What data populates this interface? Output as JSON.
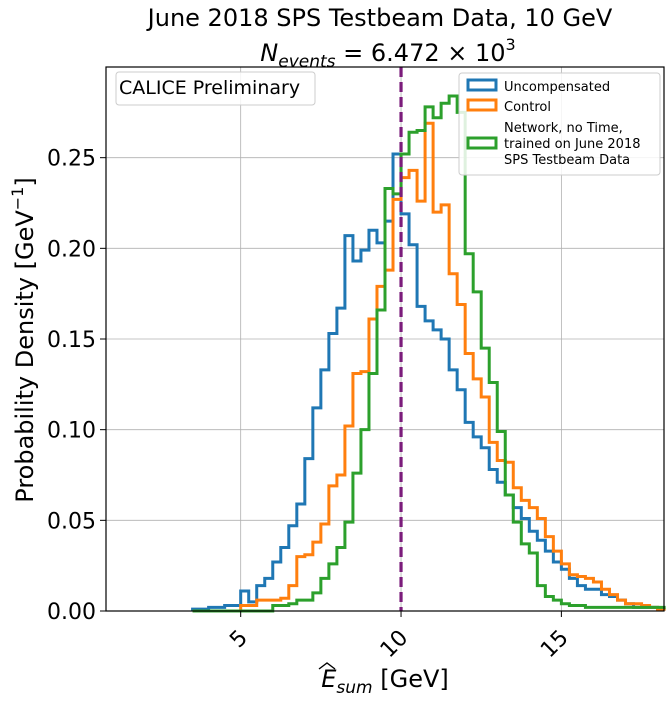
{
  "chart_data": {
    "type": "histogram",
    "title_line1": "June 2018 SPS Testbeam Data, 10 GeV",
    "title_line2_prefix": "N",
    "title_line2_sub": "events",
    "title_line2_value": " = 6.472 × 10",
    "title_line2_exp": "3",
    "xlabel_main": "E",
    "xlabel_sub": "sum",
    "xlabel_unit": " [GeV]",
    "ylabel": "Probability Density [GeV",
    "ylabel_exp": "−1",
    "ylabel_close": "]",
    "preliminary_label": "CALICE Preliminary",
    "xlim": [
      0.8,
      18.2
    ],
    "ylim": [
      0,
      0.3
    ],
    "x_ticks": [
      "5",
      "10",
      "15"
    ],
    "x_tick_values": [
      5,
      10,
      15
    ],
    "y_ticks": [
      "0.00",
      "0.05",
      "0.10",
      "0.15",
      "0.20",
      "0.25"
    ],
    "y_tick_values": [
      0.0,
      0.05,
      0.1,
      0.15,
      0.2,
      0.25
    ],
    "reference_line_x": 10,
    "reference_line_color": "#7b1c7b",
    "grid": true,
    "legend_position": "top-right",
    "bin_edges": [
      3.5,
      3.75,
      4.0,
      4.25,
      4.5,
      4.75,
      5.0,
      5.25,
      5.5,
      5.75,
      6.0,
      6.25,
      6.5,
      6.75,
      7.0,
      7.25,
      7.5,
      7.75,
      8.0,
      8.25,
      8.5,
      8.75,
      9.0,
      9.25,
      9.5,
      9.75,
      10.0,
      10.25,
      10.5,
      10.75,
      11.0,
      11.25,
      11.5,
      11.75,
      12.0,
      12.25,
      12.5,
      12.75,
      13.0,
      13.25,
      13.5,
      13.75,
      14.0,
      14.25,
      14.5,
      14.75,
      15.0,
      15.25,
      15.5,
      15.75,
      16.0,
      16.25,
      16.5,
      16.75,
      17.0,
      17.25,
      17.5,
      17.75,
      18.0,
      18.25
    ],
    "series": [
      {
        "name": "Uncompensated",
        "color": "#1f77b4",
        "values": [
          0.001,
          0.001,
          0.002,
          0.002,
          0.003,
          0.003,
          0.011,
          0.005,
          0.014,
          0.018,
          0.027,
          0.035,
          0.047,
          0.059,
          0.084,
          0.112,
          0.133,
          0.153,
          0.167,
          0.207,
          0.193,
          0.199,
          0.21,
          0.203,
          0.215,
          0.252,
          0.219,
          0.202,
          0.168,
          0.16,
          0.155,
          0.15,
          0.133,
          0.122,
          0.104,
          0.096,
          0.09,
          0.078,
          0.071,
          0.064,
          0.057,
          0.051,
          0.044,
          0.039,
          0.033,
          0.027,
          0.023,
          0.018,
          0.014,
          0.012,
          0.012,
          0.009,
          0.008,
          0.006,
          0.004,
          0.002,
          0.002,
          0.002,
          0.001,
          0.001
        ]
      },
      {
        "name": "Control",
        "color": "#ff7f0e",
        "values": [
          0.0,
          0.0,
          0.0,
          0.0,
          0.0,
          0.0,
          0.003,
          0.003,
          0.006,
          0.006,
          0.006,
          0.007,
          0.014,
          0.03,
          0.031,
          0.038,
          0.048,
          0.069,
          0.075,
          0.102,
          0.131,
          0.132,
          0.161,
          0.179,
          0.188,
          0.227,
          0.239,
          0.243,
          0.226,
          0.269,
          0.22,
          0.224,
          0.186,
          0.169,
          0.142,
          0.128,
          0.118,
          0.093,
          0.083,
          0.082,
          0.068,
          0.061,
          0.057,
          0.051,
          0.041,
          0.033,
          0.026,
          0.02,
          0.019,
          0.018,
          0.016,
          0.012,
          0.009,
          0.006,
          0.004,
          0.004,
          0.003,
          0.002,
          0.001,
          0.001
        ]
      },
      {
        "name": "Network, no Time, trained on June 2018 SPS Testbeam Data",
        "legend_lines": [
          "Network, no Time,",
          "trained on June 2018",
          " SPS Testbeam Data"
        ],
        "color": "#2ca02c",
        "values": [
          0.0,
          0.0,
          0.0,
          0.0,
          0.0,
          0.0,
          0.0,
          0.0,
          0.0,
          0.0,
          0.003,
          0.003,
          0.004,
          0.006,
          0.006,
          0.01,
          0.018,
          0.026,
          0.035,
          0.049,
          0.076,
          0.1,
          0.131,
          0.166,
          0.233,
          0.23,
          0.252,
          0.264,
          0.265,
          0.278,
          0.272,
          0.28,
          0.284,
          0.275,
          0.197,
          0.176,
          0.145,
          0.126,
          0.099,
          0.064,
          0.049,
          0.037,
          0.032,
          0.014,
          0.008,
          0.006,
          0.004,
          0.003,
          0.003,
          0.002,
          0.002,
          0.002,
          0.002,
          0.002,
          0.002,
          0.002,
          0.002,
          0.002,
          0.002,
          0.002
        ]
      }
    ]
  }
}
